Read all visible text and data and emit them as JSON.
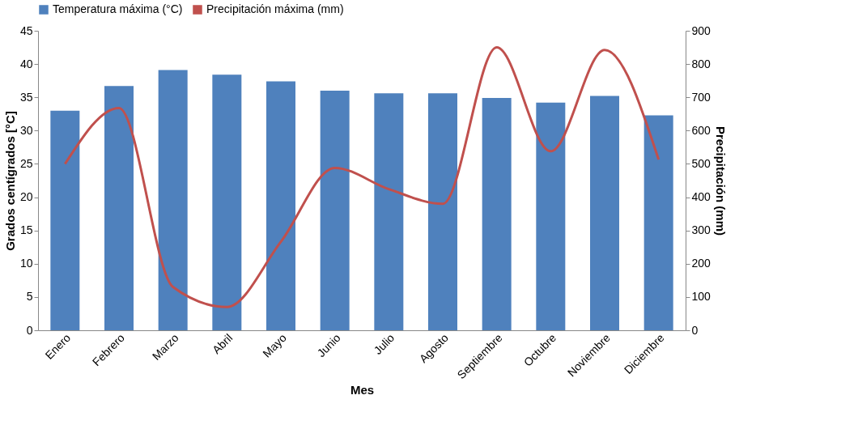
{
  "chart_data": {
    "type": "bar",
    "xlabel": "Mes",
    "ylabel": "Grados centígrados [°C]",
    "y2label": "Precipitación (mm)",
    "categories": [
      "Enero",
      "Febrero",
      "Marzo",
      "Abril",
      "Mayo",
      "Junio",
      "Julio",
      "Agosto",
      "Septiembre",
      "Octubre",
      "Noviembre",
      "Diciembre"
    ],
    "series": [
      {
        "name": "Temperatura máxima (°C)",
        "color": "#4f81bd",
        "values": [
          33.0,
          36.7,
          39.1,
          38.4,
          37.4,
          36.0,
          35.6,
          35.6,
          34.9,
          34.2,
          35.2,
          32.3
        ]
      },
      {
        "name": "Precipitación máxima (mm)",
        "color": "#c0504d",
        "type": "line",
        "axis": "y2",
        "values": [
          500,
          668,
          130,
          70,
          266,
          488,
          424,
          380,
          850,
          538,
          842,
          513
        ]
      }
    ],
    "ylim": [
      0,
      45
    ],
    "yticks": [
      0,
      5,
      10,
      15,
      20,
      25,
      30,
      35,
      40,
      45
    ],
    "y2lim": [
      0,
      900
    ],
    "y2ticks": [
      0,
      100,
      200,
      300,
      400,
      500,
      600,
      700,
      800,
      900
    ],
    "grid": false,
    "legend": "top"
  }
}
